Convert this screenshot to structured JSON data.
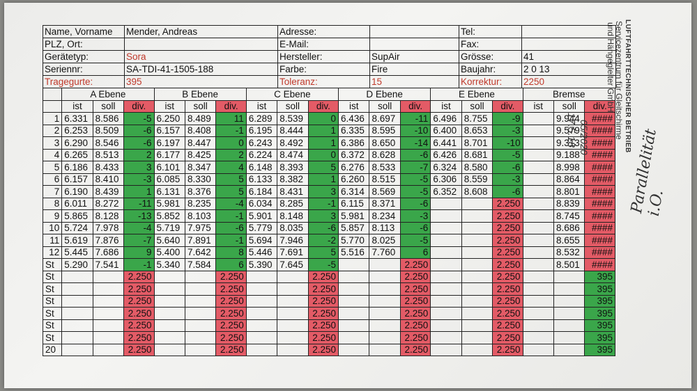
{
  "header": {
    "name_label": "Name, Vorname",
    "name_value": "Mender, Andreas",
    "address_label": "Adresse:",
    "tel_label": "Tel:",
    "plz_label": "PLZ, Ort:",
    "email_label": "E-Mail:",
    "fax_label": "Fax:",
    "device_label": "Gerätetyp:",
    "device_value": "Sora",
    "manufacturer_label": "Hersteller:",
    "manufacturer_value": "SupAir",
    "size_label": "Grösse:",
    "size_value": "41",
    "serial_label": "Seriennr:",
    "serial_value": "SA-TDI-41-1505-188",
    "color_label": "Farbe:",
    "color_value": "Fire",
    "year_label": "Baujahr:",
    "year_value": "2 0 13",
    "harness_label": "Tragegurte:",
    "harness_value": "395",
    "tolerance_label": "Toleranz:",
    "tolerance_value": "15",
    "correction_label": "Korrektur:",
    "correction_value": "2250"
  },
  "groups": [
    "A Ebene",
    "B Ebene",
    "C Ebene",
    "D Ebene",
    "E Ebene",
    "Bremse"
  ],
  "col_labels": {
    "ist": "ist",
    "soll": "soll",
    "div": "div."
  },
  "rows": [
    {
      "label": "1",
      "cells": [
        [
          "6.331",
          "8.586",
          "-5"
        ],
        [
          "6.250",
          "8.489",
          "11"
        ],
        [
          "6.289",
          "8.539",
          "0"
        ],
        [
          "6.436",
          "8.697",
          "-11"
        ],
        [
          "6.496",
          "8.755",
          "-9"
        ],
        [
          "",
          "9.944",
          "####"
        ]
      ]
    },
    {
      "label": "2",
      "cells": [
        [
          "6.253",
          "8.509",
          "-6"
        ],
        [
          "6.157",
          "8.408",
          "-1"
        ],
        [
          "6.195",
          "8.444",
          "1"
        ],
        [
          "6.335",
          "8.595",
          "-10"
        ],
        [
          "6.400",
          "8.653",
          "-3"
        ],
        [
          "",
          "9.579",
          "####"
        ]
      ]
    },
    {
      "label": "3",
      "cells": [
        [
          "6.290",
          "8.546",
          "-6"
        ],
        [
          "6.197",
          "8.447",
          "0"
        ],
        [
          "6.243",
          "8.492",
          "1"
        ],
        [
          "6.386",
          "8.650",
          "-14"
        ],
        [
          "6.441",
          "8.701",
          "-10"
        ],
        [
          "",
          "9.313",
          "####"
        ]
      ]
    },
    {
      "label": "4",
      "cells": [
        [
          "6.265",
          "8.513",
          "2"
        ],
        [
          "6.177",
          "8.425",
          "2"
        ],
        [
          "6.224",
          "8.474",
          "0"
        ],
        [
          "6.372",
          "8.628",
          "-6"
        ],
        [
          "6.426",
          "8.681",
          "-5"
        ],
        [
          "",
          "9.188",
          "####"
        ]
      ]
    },
    {
      "label": "5",
      "cells": [
        [
          "6.186",
          "8.433",
          "3"
        ],
        [
          "6.101",
          "8.347",
          "4"
        ],
        [
          "6.148",
          "8.393",
          "5"
        ],
        [
          "6.276",
          "8.533",
          "-7"
        ],
        [
          "6.324",
          "8.580",
          "-6"
        ],
        [
          "",
          "8.998",
          "####"
        ]
      ]
    },
    {
      "label": "6",
      "cells": [
        [
          "6.157",
          "8.410",
          "-3"
        ],
        [
          "6.085",
          "8.330",
          "5"
        ],
        [
          "6.133",
          "8.382",
          "1"
        ],
        [
          "6.260",
          "8.515",
          "-5"
        ],
        [
          "6.306",
          "8.559",
          "-3"
        ],
        [
          "",
          "8.864",
          "####"
        ]
      ]
    },
    {
      "label": "7",
      "cells": [
        [
          "6.190",
          "8.439",
          "1"
        ],
        [
          "6.131",
          "8.376",
          "5"
        ],
        [
          "6.184",
          "8.431",
          "3"
        ],
        [
          "6.314",
          "8.569",
          "-5"
        ],
        [
          "6.352",
          "8.608",
          "-6"
        ],
        [
          "",
          "8.801",
          "####"
        ]
      ]
    },
    {
      "label": "8",
      "cells": [
        [
          "6.011",
          "8.272",
          "-11"
        ],
        [
          "5.981",
          "8.235",
          "-4"
        ],
        [
          "6.034",
          "8.285",
          "-1"
        ],
        [
          "6.115",
          "8.371",
          "-6"
        ],
        [
          "",
          "",
          "2.250"
        ],
        [
          "",
          "8.839",
          "####"
        ]
      ]
    },
    {
      "label": "9",
      "cells": [
        [
          "5.865",
          "8.128",
          "-13"
        ],
        [
          "5.852",
          "8.103",
          "-1"
        ],
        [
          "5.901",
          "8.148",
          "3"
        ],
        [
          "5.981",
          "8.234",
          "-3"
        ],
        [
          "",
          "",
          "2.250"
        ],
        [
          "",
          "8.745",
          "####"
        ]
      ]
    },
    {
      "label": "10",
      "cells": [
        [
          "5.724",
          "7.978",
          "-4"
        ],
        [
          "5.719",
          "7.975",
          "-6"
        ],
        [
          "5.779",
          "8.035",
          "-6"
        ],
        [
          "5.857",
          "8.113",
          "-6"
        ],
        [
          "",
          "",
          "2.250"
        ],
        [
          "",
          "8.686",
          "####"
        ]
      ]
    },
    {
      "label": "11",
      "cells": [
        [
          "5.619",
          "7.876",
          "-7"
        ],
        [
          "5.640",
          "7.891",
          "-1"
        ],
        [
          "5.694",
          "7.946",
          "-2"
        ],
        [
          "5.770",
          "8.025",
          "-5"
        ],
        [
          "",
          "",
          "2.250"
        ],
        [
          "",
          "8.655",
          "####"
        ]
      ]
    },
    {
      "label": "12",
      "cells": [
        [
          "5.445",
          "7.686",
          "9"
        ],
        [
          "5.400",
          "7.642",
          "8"
        ],
        [
          "5.446",
          "7.691",
          "5"
        ],
        [
          "5.516",
          "7.760",
          "6"
        ],
        [
          "",
          "",
          "2.250"
        ],
        [
          "",
          "8.532",
          "####"
        ]
      ]
    },
    {
      "label": "St",
      "cells": [
        [
          "5.290",
          "7.541",
          "-1"
        ],
        [
          "5.340",
          "7.584",
          "6"
        ],
        [
          "5.390",
          "7.645",
          "-5"
        ],
        [
          "",
          "",
          "2.250"
        ],
        [
          "",
          "",
          "2.250"
        ],
        [
          "",
          "8.501",
          "####"
        ]
      ]
    },
    {
      "label": "St",
      "cells": [
        [
          "",
          "",
          "2.250"
        ],
        [
          "",
          "",
          "2.250"
        ],
        [
          "",
          "",
          "2.250"
        ],
        [
          "",
          "",
          "2.250"
        ],
        [
          "",
          "",
          "2.250"
        ],
        [
          "",
          "",
          "395"
        ]
      ]
    },
    {
      "label": "St",
      "cells": [
        [
          "",
          "",
          "2.250"
        ],
        [
          "",
          "",
          "2.250"
        ],
        [
          "",
          "",
          "2.250"
        ],
        [
          "",
          "",
          "2.250"
        ],
        [
          "",
          "",
          "2.250"
        ],
        [
          "",
          "",
          "395"
        ]
      ]
    },
    {
      "label": "St",
      "cells": [
        [
          "",
          "",
          "2.250"
        ],
        [
          "",
          "",
          "2.250"
        ],
        [
          "",
          "",
          "2.250"
        ],
        [
          "",
          "",
          "2.250"
        ],
        [
          "",
          "",
          "2.250"
        ],
        [
          "",
          "",
          "395"
        ]
      ]
    },
    {
      "label": "St",
      "cells": [
        [
          "",
          "",
          "2.250"
        ],
        [
          "",
          "",
          "2.250"
        ],
        [
          "",
          "",
          "2.250"
        ],
        [
          "",
          "",
          "2.250"
        ],
        [
          "",
          "",
          "2.250"
        ],
        [
          "",
          "",
          "395"
        ]
      ]
    },
    {
      "label": "St",
      "cells": [
        [
          "",
          "",
          "2.250"
        ],
        [
          "",
          "",
          "2.250"
        ],
        [
          "",
          "",
          "2.250"
        ],
        [
          "",
          "",
          "2.250"
        ],
        [
          "",
          "",
          "2.250"
        ],
        [
          "",
          "",
          "395"
        ]
      ]
    },
    {
      "label": "St",
      "cells": [
        [
          "",
          "",
          "2.250"
        ],
        [
          "",
          "",
          "2.250"
        ],
        [
          "",
          "",
          "2.250"
        ],
        [
          "",
          "",
          "2.250"
        ],
        [
          "",
          "",
          "2.250"
        ],
        [
          "",
          "",
          "395"
        ]
      ]
    },
    {
      "label": "20",
      "cells": [
        [
          "",
          "",
          "2.250"
        ],
        [
          "",
          "",
          "2.250"
        ],
        [
          "",
          "",
          "2.250"
        ],
        [
          "",
          "",
          "2.250"
        ],
        [
          "",
          "",
          "2.250"
        ],
        [
          "",
          "",
          "395"
        ]
      ]
    }
  ],
  "stamp": {
    "line1": "LUFTFAHRTTECHNISCHER BETRIEB",
    "line2": "Servicezentrum für Gleitschirme",
    "line3": "und Hängegleiter GmbH",
    "date1": "05/2020",
    "date2": "17.5.18"
  },
  "handwritten_note": "Parallelität i.O."
}
